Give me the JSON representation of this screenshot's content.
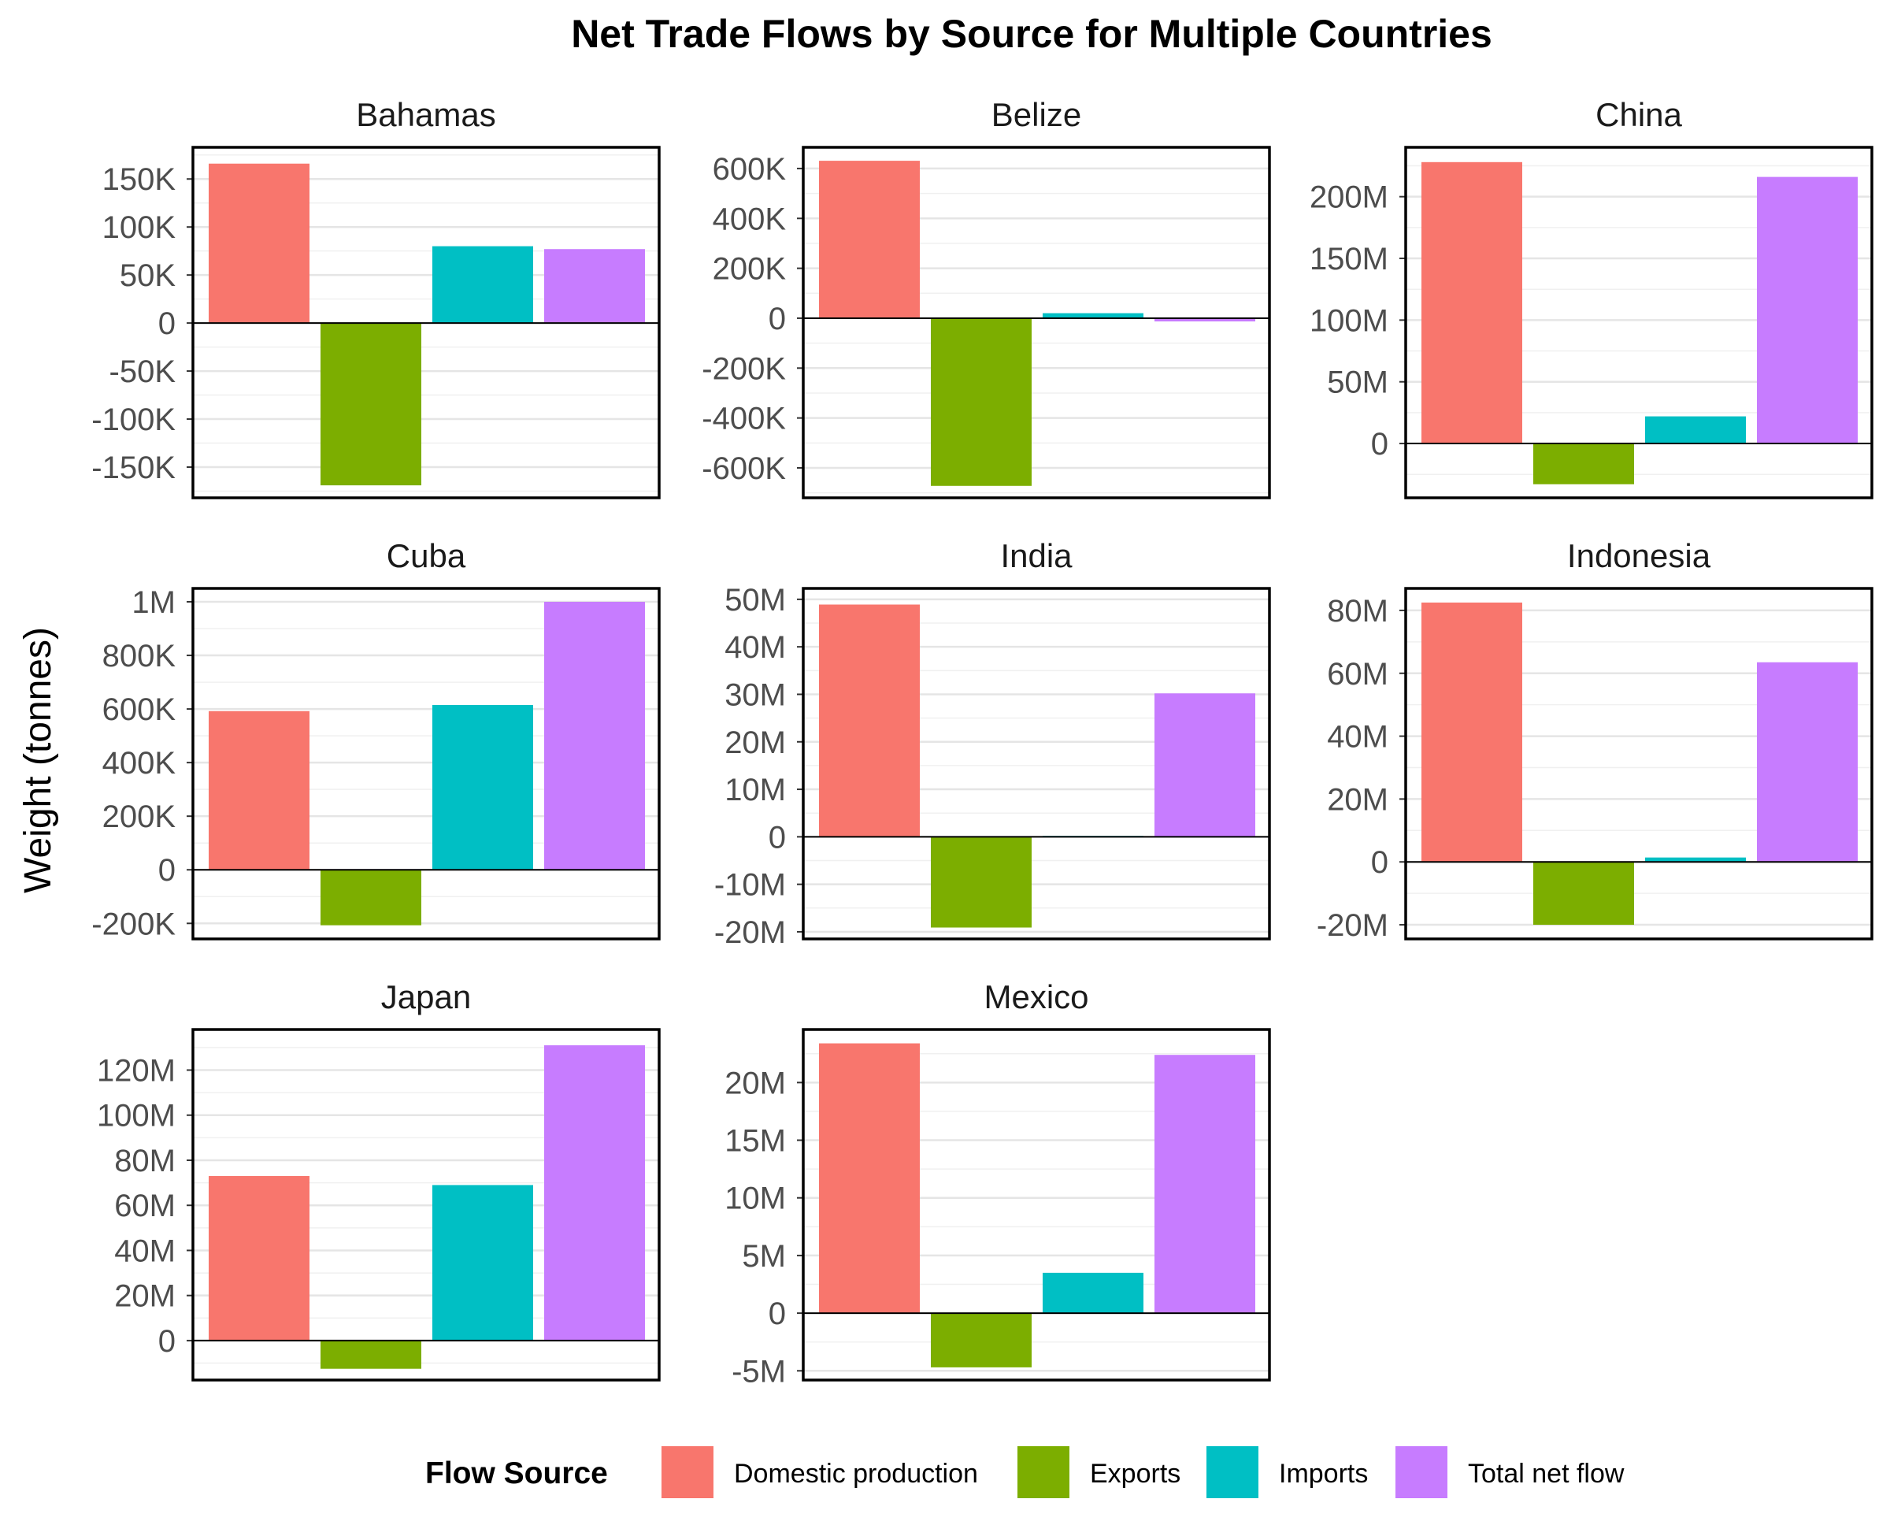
{
  "colors": {
    "Domestic production": "#F8766D",
    "Exports": "#7CAE00",
    "Imports": "#00BFC4",
    "Total net flow": "#C77CFF"
  },
  "chart_data": {
    "type": "bar",
    "title": "Net Trade Flows by Source for Multiple Countries",
    "xlabel": "",
    "ylabel": "Weight (tonnes)",
    "legend": {
      "title": "Flow Source",
      "placement": "bottom",
      "entries": [
        "Domestic production",
        "Exports",
        "Imports",
        "Total net flow"
      ]
    },
    "categories": [
      "Domestic production",
      "Exports",
      "Imports",
      "Total net flow"
    ],
    "grid": true,
    "facets": [
      {
        "name": "Bahamas",
        "values": [
          166000,
          -169000,
          80000,
          77000
        ],
        "ylim": [
          -182000,
          183000
        ],
        "ticks": [
          -150000,
          -100000,
          -50000,
          0,
          50000,
          100000,
          150000
        ],
        "tick_labels": [
          "-150K",
          "-100K",
          "-50K",
          "0",
          "50K",
          "100K",
          "150K"
        ]
      },
      {
        "name": "Belize",
        "values": [
          631000,
          -672000,
          20000,
          -13000
        ],
        "ylim": [
          -720000,
          685000
        ],
        "ticks": [
          -600000,
          -400000,
          -200000,
          0,
          200000,
          400000,
          600000
        ],
        "tick_labels": [
          "-600K",
          "-400K",
          "-200K",
          "0",
          "200K",
          "400K",
          "600K"
        ]
      },
      {
        "name": "China",
        "values": [
          228000000,
          -33000000,
          22000000,
          216000000
        ],
        "ylim": [
          -44000000,
          240000000
        ],
        "ticks": [
          0,
          50000000,
          100000000,
          150000000,
          200000000
        ],
        "tick_labels": [
          "0",
          "50M",
          "100M",
          "150M",
          "200M"
        ]
      },
      {
        "name": "Cuba",
        "values": [
          592000,
          -207000,
          615000,
          1000000
        ],
        "ylim": [
          -258000,
          1050000
        ],
        "ticks": [
          -200000,
          0,
          200000,
          400000,
          600000,
          800000,
          1000000
        ],
        "tick_labels": [
          "-200K",
          "0",
          "200K",
          "400K",
          "600K",
          "800K",
          "1M"
        ]
      },
      {
        "name": "India",
        "values": [
          48900000,
          -19100000,
          200000,
          30200000
        ],
        "ylim": [
          -21500000,
          52300000
        ],
        "ticks": [
          -20000000,
          -10000000,
          0,
          10000000,
          20000000,
          30000000,
          40000000,
          50000000
        ],
        "tick_labels": [
          "-20M",
          "-10M",
          "0",
          "10M",
          "20M",
          "30M",
          "40M",
          "50M"
        ]
      },
      {
        "name": "Indonesia",
        "values": [
          82500000,
          -20000000,
          1400000,
          63500000
        ],
        "ylim": [
          -24500000,
          87000000
        ],
        "ticks": [
          -20000000,
          0,
          20000000,
          40000000,
          60000000,
          80000000
        ],
        "tick_labels": [
          "-20M",
          "0",
          "20M",
          "40M",
          "60M",
          "80M"
        ]
      },
      {
        "name": "Japan",
        "values": [
          73000000,
          -12500000,
          69000000,
          131000000
        ],
        "ylim": [
          -17500000,
          138000000
        ],
        "ticks": [
          0,
          20000000,
          40000000,
          60000000,
          80000000,
          100000000,
          120000000
        ],
        "tick_labels": [
          "0",
          "20M",
          "40M",
          "60M",
          "80M",
          "100M",
          "120M"
        ]
      },
      {
        "name": "Mexico",
        "values": [
          23400000,
          -4700000,
          3500000,
          22400000
        ],
        "ylim": [
          -5800000,
          24600000
        ],
        "ticks": [
          -5000000,
          0,
          5000000,
          10000000,
          15000000,
          20000000
        ],
        "tick_labels": [
          "-5M",
          "0",
          "5M",
          "10M",
          "15M",
          "20M"
        ]
      }
    ]
  }
}
